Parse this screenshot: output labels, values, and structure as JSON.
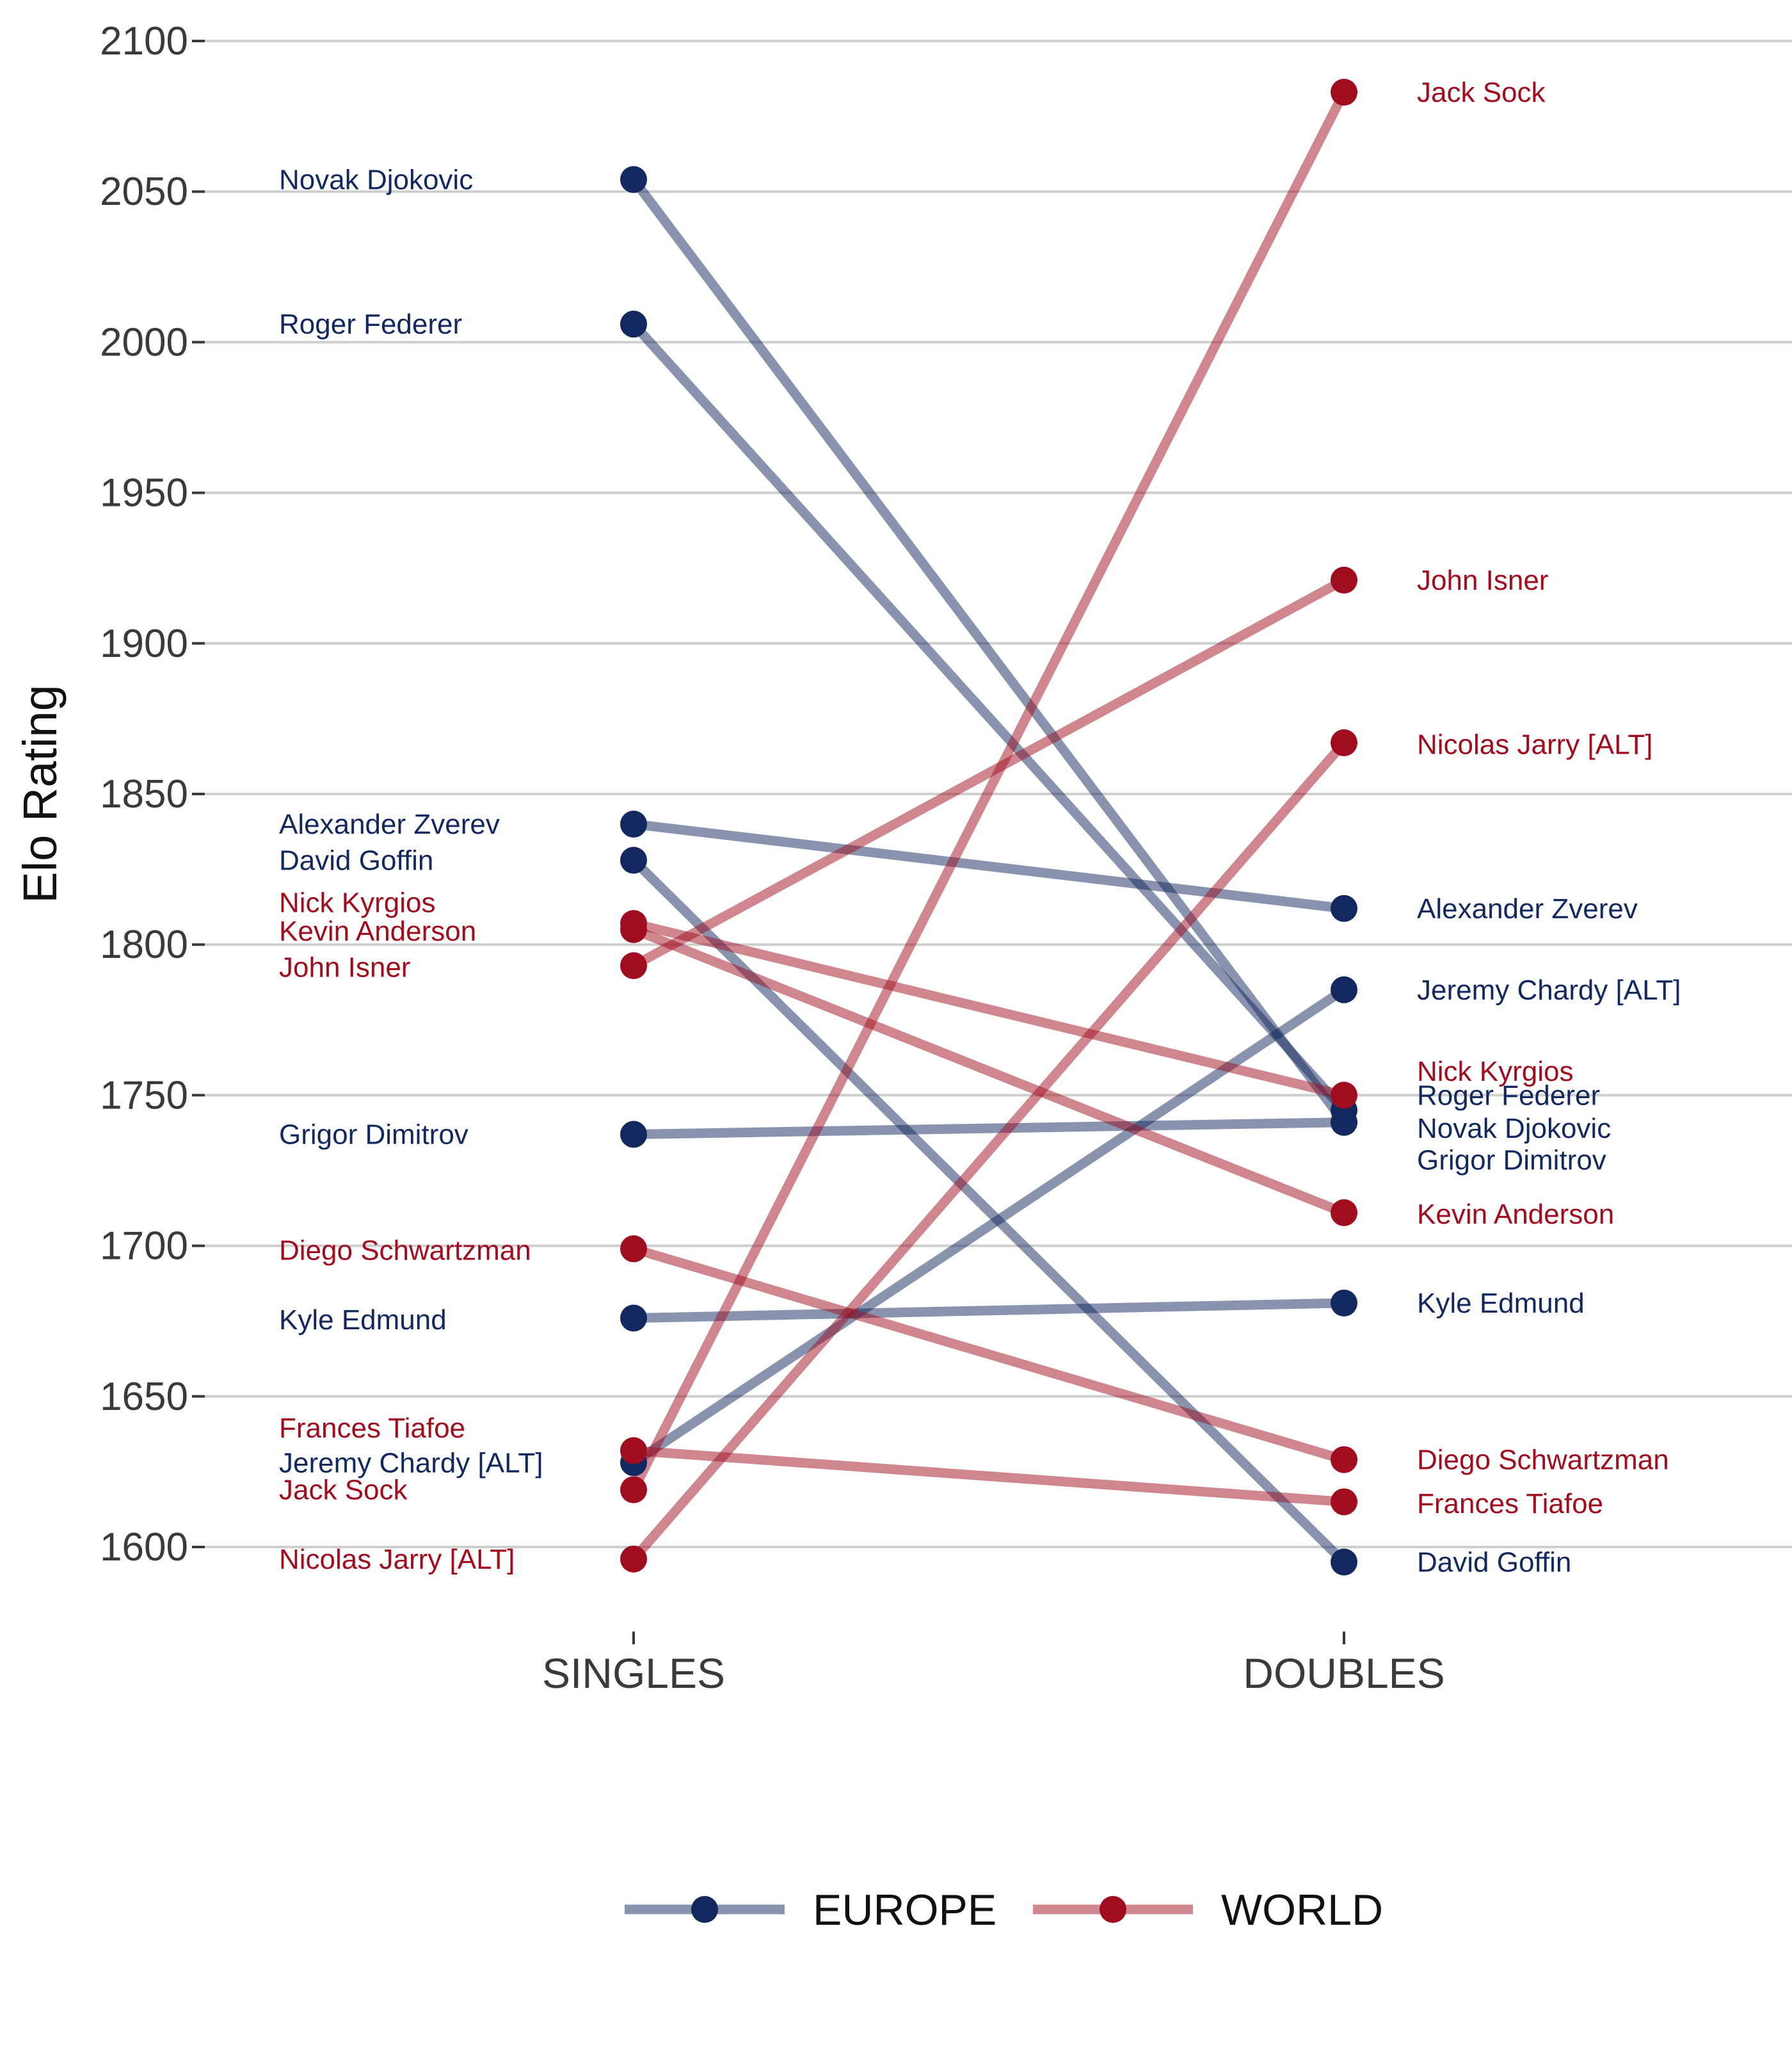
{
  "chart_data": {
    "type": "line",
    "ylabel": "Elo Rating",
    "categories": [
      "SINGLES",
      "DOUBLES"
    ],
    "ylim": [
      1580,
      2105
    ],
    "yticks": [
      1600,
      1650,
      1700,
      1750,
      1800,
      1850,
      1900,
      1950,
      2000,
      2050,
      2100
    ],
    "grid": true,
    "legend_position": "bottom",
    "colors": {
      "EUROPE": "#13285e",
      "WORLD": "#a00d1f"
    },
    "legend": [
      "EUROPE",
      "WORLD"
    ],
    "players": [
      {
        "name": "Novak Djokovic",
        "team": "EUROPE",
        "singles": 2054,
        "doubles": 1741
      },
      {
        "name": "Roger Federer",
        "team": "EUROPE",
        "singles": 2006,
        "doubles": 1745
      },
      {
        "name": "Alexander Zverev",
        "team": "EUROPE",
        "singles": 1840,
        "doubles": 1812
      },
      {
        "name": "David Goffin",
        "team": "EUROPE",
        "singles": 1828,
        "doubles": 1595
      },
      {
        "name": "Grigor Dimitrov",
        "team": "EUROPE",
        "singles": 1737,
        "doubles": 1741
      },
      {
        "name": "Kyle Edmund",
        "team": "EUROPE",
        "singles": 1676,
        "doubles": 1681
      },
      {
        "name": "Jeremy Chardy [ALT]",
        "team": "EUROPE",
        "singles": 1628,
        "doubles": 1785
      },
      {
        "name": "Nick Kyrgios",
        "team": "WORLD",
        "singles": 1807,
        "doubles": 1750
      },
      {
        "name": "Kevin Anderson",
        "team": "WORLD",
        "singles": 1805,
        "doubles": 1711
      },
      {
        "name": "John Isner",
        "team": "WORLD",
        "singles": 1793,
        "doubles": 1921
      },
      {
        "name": "Diego Schwartzman",
        "team": "WORLD",
        "singles": 1699,
        "doubles": 1629
      },
      {
        "name": "Frances Tiafoe",
        "team": "WORLD",
        "singles": 1632,
        "doubles": 1615
      },
      {
        "name": "Jack Sock",
        "team": "WORLD",
        "singles": 1619,
        "doubles": 2083
      },
      {
        "name": "Nicolas Jarry [ALT]",
        "team": "WORLD",
        "singles": 1596,
        "doubles": 1867
      }
    ],
    "singles_labels": [
      {
        "text": "Novak Djokovic",
        "team": "EUROPE",
        "y": 2054
      },
      {
        "text": "Roger Federer",
        "team": "EUROPE",
        "y": 2006
      },
      {
        "text": "Alexander Zverev",
        "team": "EUROPE",
        "y": 1840
      },
      {
        "text": "David Goffin",
        "team": "EUROPE",
        "y": 1828
      },
      {
        "text": "Nick Kyrgios",
        "team": "WORLD",
        "y": 1814
      },
      {
        "text": "Kevin Anderson",
        "team": "WORLD",
        "y": 1804.5
      },
      {
        "text": "John Isner",
        "team": "WORLD",
        "y": 1792.5
      },
      {
        "text": "Grigor Dimitrov",
        "team": "EUROPE",
        "y": 1737
      },
      {
        "text": "Diego Schwartzman",
        "team": "WORLD",
        "y": 1698.5
      },
      {
        "text": "Kyle Edmund",
        "team": "EUROPE",
        "y": 1675.5
      },
      {
        "text": "Frances Tiafoe",
        "team": "WORLD",
        "y": 1639.5
      },
      {
        "text": "Jeremy Chardy [ALT]",
        "team": "EUROPE",
        "y": 1628
      },
      {
        "text": "Jack Sock",
        "team": "WORLD",
        "y": 1619
      },
      {
        "text": "Nicolas Jarry [ALT]",
        "team": "WORLD",
        "y": 1596
      }
    ],
    "doubles_labels": [
      {
        "text": "Jack Sock",
        "team": "WORLD",
        "y": 2083
      },
      {
        "text": "John Isner",
        "team": "WORLD",
        "y": 1921
      },
      {
        "text": "Nicolas Jarry [ALT]",
        "team": "WORLD",
        "y": 1866.5
      },
      {
        "text": "Alexander Zverev",
        "team": "EUROPE",
        "y": 1812
      },
      {
        "text": "Jeremy Chardy [ALT]",
        "team": "EUROPE",
        "y": 1785
      },
      {
        "text": "Nick Kyrgios",
        "team": "WORLD",
        "y": 1758
      },
      {
        "text": "Roger Federer",
        "team": "EUROPE",
        "y": 1750
      },
      {
        "text": "Novak Djokovic",
        "team": "EUROPE",
        "y": 1739
      },
      {
        "text": "Grigor Dimitrov",
        "team": "EUROPE",
        "y": 1728.5
      },
      {
        "text": "Kevin Anderson",
        "team": "WORLD",
        "y": 1710.5
      },
      {
        "text": "Kyle Edmund",
        "team": "EUROPE",
        "y": 1681
      },
      {
        "text": "Diego Schwartzman",
        "team": "WORLD",
        "y": 1629
      },
      {
        "text": "Frances Tiafoe",
        "team": "WORLD",
        "y": 1614.5
      },
      {
        "text": "David Goffin",
        "team": "EUROPE",
        "y": 1595
      }
    ]
  }
}
